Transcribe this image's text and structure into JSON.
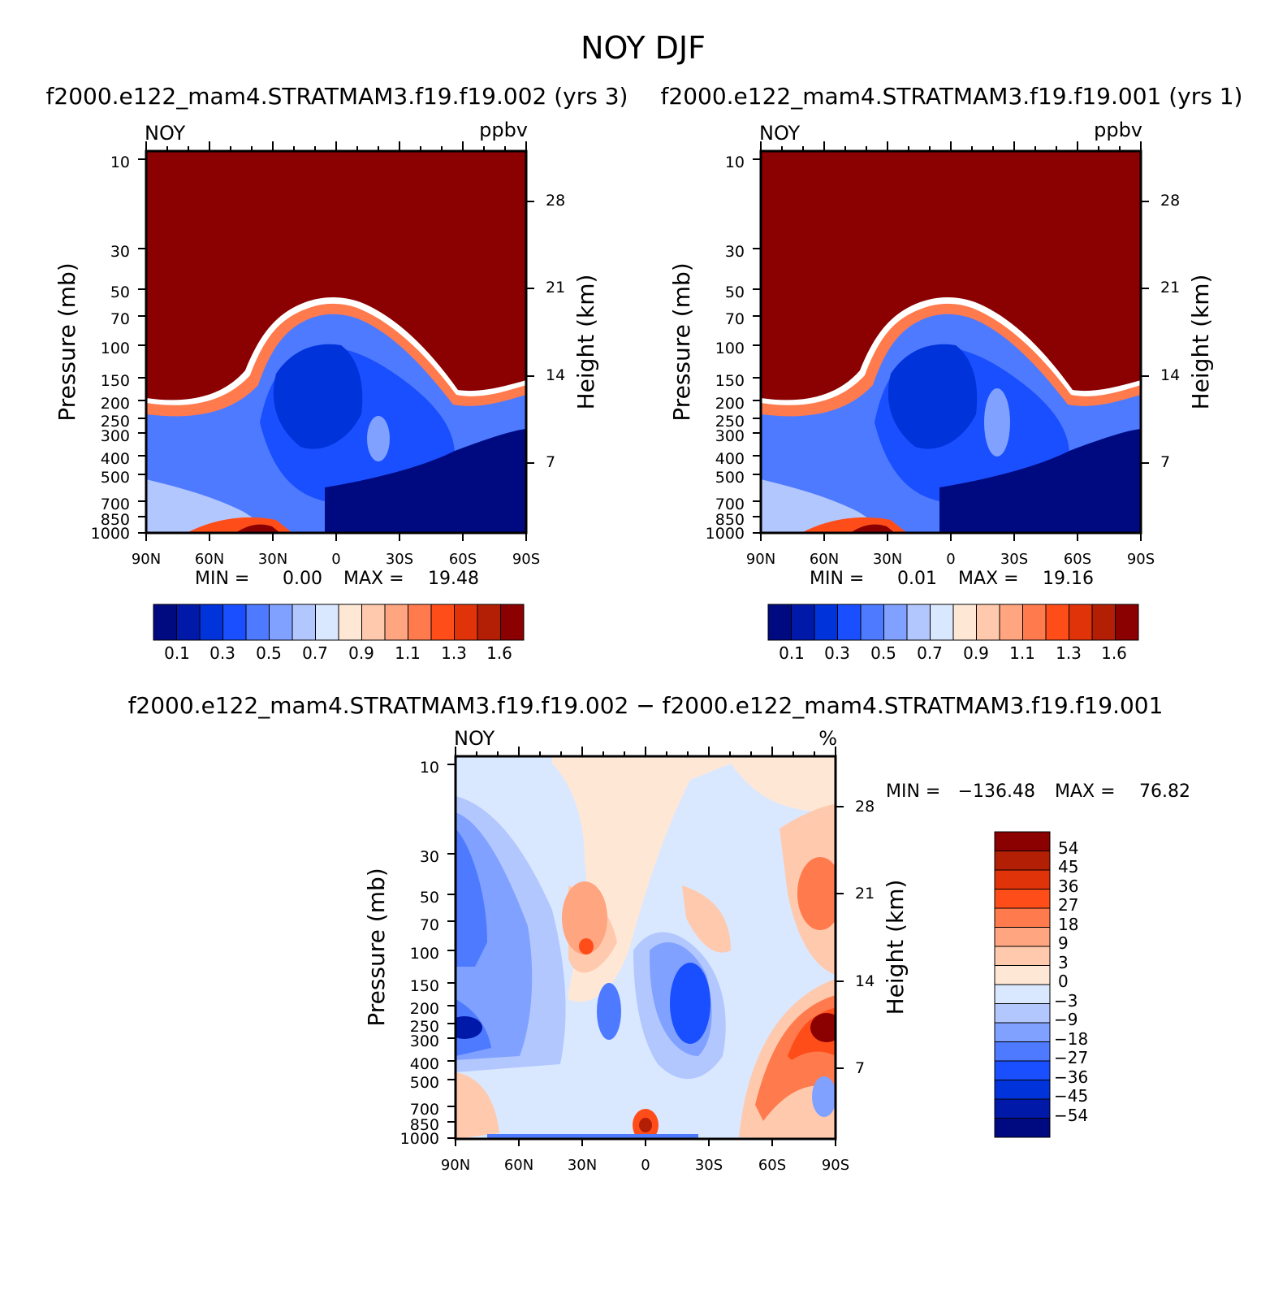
{
  "figure": {
    "title": "NOY DJF"
  },
  "colors": {
    "seq": [
      "#000a80",
      "#0019a8",
      "#0033d9",
      "#1a4fff",
      "#4d7aff",
      "#80a1ff",
      "#b3c7ff",
      "#d9e8ff",
      "#ffe7d6",
      "#ffc9ad",
      "#ffa580",
      "#ff7a4d",
      "#ff4d1a",
      "#e0330a",
      "#b31f05",
      "#8b0000"
    ],
    "diff": [
      "#000a80",
      "#0019a8",
      "#0033d9",
      "#1a4fff",
      "#4d7aff",
      "#80a1ff",
      "#b3c7ff",
      "#d9e8ff",
      "#ffe7d6",
      "#ffc9ad",
      "#ffa580",
      "#ff7a4d",
      "#ff4d1a",
      "#e0330a",
      "#b31f05",
      "#8b0000"
    ]
  },
  "chart_data": [
    {
      "type": "heatmap",
      "id": "p1",
      "title": "f2000.e122_mam4.STRATMAM3.f19.f19.002 (yrs 3)",
      "left_label": "NOY",
      "right_label": "ppbv",
      "xlabel": "",
      "ylabel": "Pressure (mb)",
      "ylabel_right": "Height (km)",
      "x_ticks": [
        "90N",
        "60N",
        "30N",
        "0",
        "30S",
        "60S",
        "90S"
      ],
      "y_ticks": [
        "10",
        "30",
        "50",
        "70",
        "100",
        "150",
        "200",
        "250",
        "300",
        "400",
        "500",
        "700",
        "850",
        "1000"
      ],
      "y_ticks_right": [
        "28",
        "21",
        "14",
        "7"
      ],
      "stats": {
        "min_label": "MIN =",
        "min": "0.00",
        "max_label": "MAX =",
        "max": "19.48"
      },
      "colorbar_labels": [
        "0.1",
        "0.3",
        "0.5",
        "0.7",
        "0.9",
        "1.1",
        "1.3",
        "1.6"
      ]
    },
    {
      "type": "heatmap",
      "id": "p2",
      "title": "f2000.e122_mam4.STRATMAM3.f19.f19.001 (yrs 1)",
      "left_label": "NOY",
      "right_label": "ppbv",
      "xlabel": "",
      "ylabel": "Pressure (mb)",
      "ylabel_right": "Height (km)",
      "x_ticks": [
        "90N",
        "60N",
        "30N",
        "0",
        "30S",
        "60S",
        "90S"
      ],
      "y_ticks": [
        "10",
        "30",
        "50",
        "70",
        "100",
        "150",
        "200",
        "250",
        "300",
        "400",
        "500",
        "700",
        "850",
        "1000"
      ],
      "y_ticks_right": [
        "28",
        "21",
        "14",
        "7"
      ],
      "stats": {
        "min_label": "MIN =",
        "min": "0.01",
        "max_label": "MAX =",
        "max": "19.16"
      },
      "colorbar_labels": [
        "0.1",
        "0.3",
        "0.5",
        "0.7",
        "0.9",
        "1.1",
        "1.3",
        "1.6"
      ]
    },
    {
      "type": "heatmap",
      "id": "p3",
      "title": "f2000.e122_mam4.STRATMAM3.f19.f19.002 − f2000.e122_mam4.STRATMAM3.f19.f19.001",
      "left_label": "NOY",
      "right_label": "%",
      "xlabel": "",
      "ylabel": "Pressure (mb)",
      "ylabel_right": "Height (km)",
      "x_ticks": [
        "90N",
        "60N",
        "30N",
        "0",
        "30S",
        "60S",
        "90S"
      ],
      "y_ticks": [
        "10",
        "30",
        "50",
        "70",
        "100",
        "150",
        "200",
        "250",
        "300",
        "400",
        "500",
        "700",
        "850",
        "1000"
      ],
      "y_ticks_right": [
        "28",
        "21",
        "14",
        "7"
      ],
      "stats": {
        "min_label": "MIN =",
        "min": "−136.48",
        "max_label": "MAX =",
        "max": "76.82"
      },
      "colorbar_labels": [
        "54",
        "45",
        "36",
        "27",
        "18",
        "9",
        "3",
        "0",
        "−3",
        "−9",
        "−18",
        "−27",
        "−36",
        "−45",
        "−54"
      ]
    }
  ]
}
